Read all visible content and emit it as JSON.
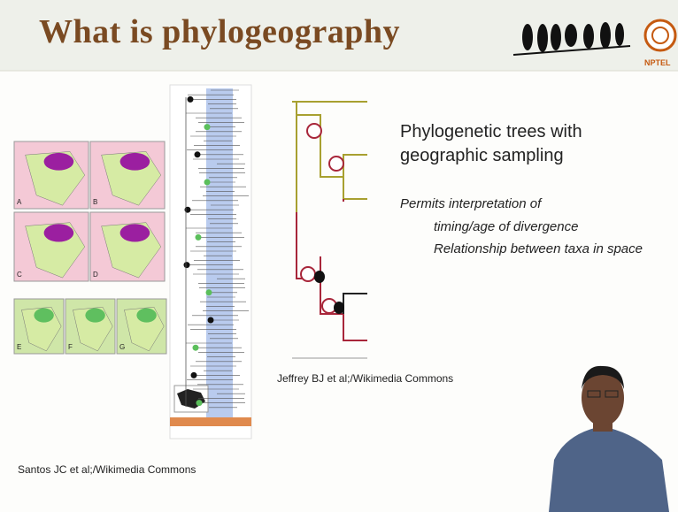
{
  "header": {
    "title": "What is phylogeography",
    "logo_text": "NPTEL"
  },
  "figures": {
    "maps": {
      "panels": [
        "A",
        "B",
        "C",
        "D",
        "E",
        "F",
        "G"
      ],
      "credit": "Santos JC et al;/Wikimedia Commons"
    },
    "tree": {
      "credit": "Jeffrey BJ et al;/Wikimedia Commons"
    }
  },
  "text": {
    "heading": "Phylogenetic trees with geographic sampling",
    "lead": "Permits interpretation of",
    "points": [
      "timing/age of divergence",
      "Relationship between taxa in space"
    ]
  }
}
